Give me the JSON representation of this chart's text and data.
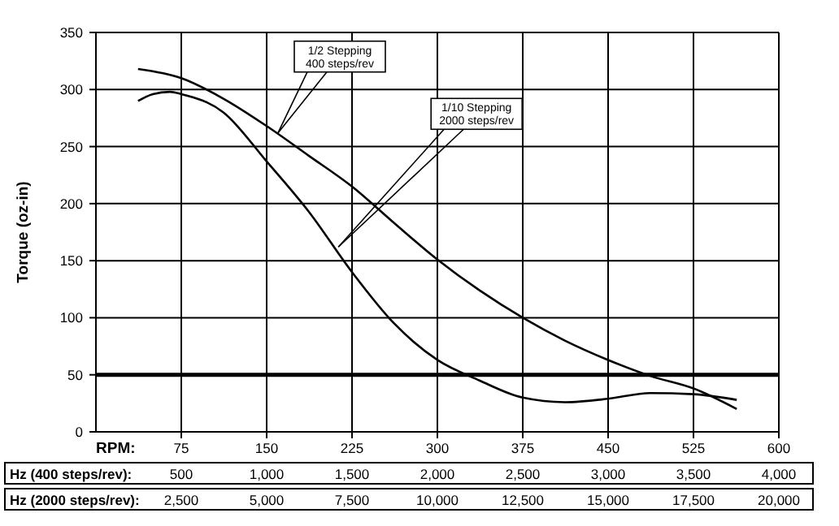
{
  "chart_data": {
    "type": "line",
    "xlabel": "RPM:",
    "ylabel": "Torque (oz-in)",
    "xlim": [
      0,
      600
    ],
    "xticks": [
      75,
      150,
      225,
      300,
      375,
      450,
      525,
      600
    ],
    "x2label": "Hz (400 steps/rev):",
    "x2lim": [
      0,
      4000
    ],
    "x2ticks": [
      {
        "value": 500,
        "label": "500"
      },
      {
        "value": 1000,
        "label": "1,000"
      },
      {
        "value": 1500,
        "label": "1,500"
      },
      {
        "value": 2000,
        "label": "2,000"
      },
      {
        "value": 2500,
        "label": "2,500"
      },
      {
        "value": 3000,
        "label": "3,000"
      },
      {
        "value": 3500,
        "label": "3,500"
      },
      {
        "value": 4000,
        "label": "4,000"
      }
    ],
    "ylim": [
      0,
      350
    ],
    "yticks": [
      0,
      50,
      100,
      150,
      200,
      250,
      300,
      350
    ],
    "grid": true,
    "marker": "none",
    "line_style": "solid",
    "series": [
      {
        "color": "#000000",
        "x": [
          37,
          75,
          112,
          150,
          187,
          225,
          262,
          300,
          337,
          375,
          412,
          450,
          487,
          525,
          563
        ],
        "values": [
          318,
          310,
          292,
          268,
          242,
          215,
          183,
          151,
          124,
          100,
          80,
          63,
          49,
          38,
          20
        ]
      },
      {
        "color": "#000000",
        "x": [
          37,
          50,
          65,
          75,
          112,
          150,
          187,
          225,
          262,
          300,
          337,
          375,
          412,
          450,
          487,
          525,
          563
        ],
        "values": [
          290,
          296,
          298,
          296,
          280,
          237,
          193,
          140,
          95,
          63,
          45,
          30,
          26,
          29,
          34,
          33,
          28
        ]
      }
    ],
    "ref_lines": [
      {
        "axis": "y",
        "value": 50,
        "color": "#000000"
      }
    ],
    "annotations": [
      {
        "text": "1/2 Stepping\n400 steps/rev",
        "x": 160,
        "y": 262
      },
      {
        "text": "1/10 Stepping\n2000 steps/rev",
        "x": 213,
        "y": 162
      },
      "Hz (2000 steps/rev):",
      "2,500",
      "5,000",
      "7,500",
      "10,000",
      "12,500",
      "15,000",
      "17,500",
      "20,000"
    ]
  }
}
